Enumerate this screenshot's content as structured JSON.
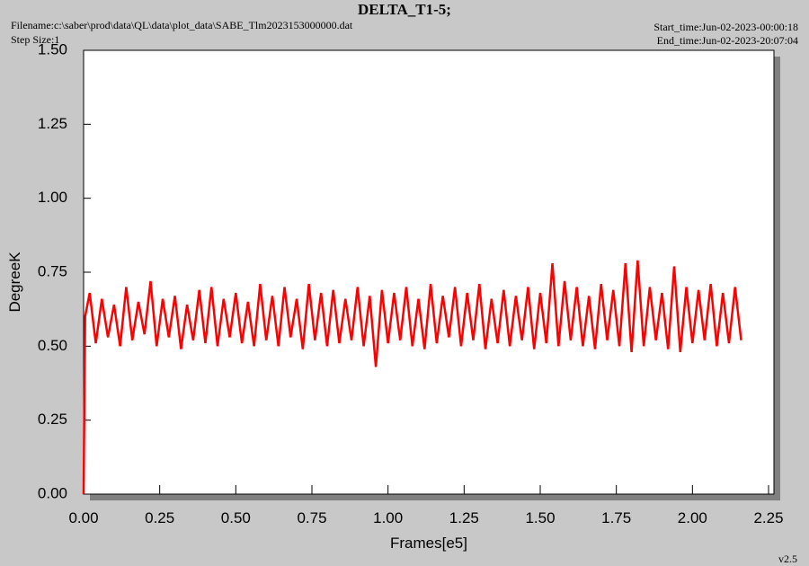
{
  "chart_data": {
    "type": "line",
    "title": "DELTA_T1-5;",
    "filename": "Filename:c:\\saber\\prod\\data\\QL\\data\\plot_data\\SABE_Tlm2023153000000.dat",
    "step_size": "Step Size:1",
    "start_time": "Start_time:Jun-02-2023-00:00:18",
    "end_time": "End_time:Jun-02-2023-20:07:04",
    "version": "v2.5",
    "x_label": "Frames[e5]",
    "y_label": "DegreeK",
    "xlim": [
      0,
      2.25
    ],
    "ylim": [
      0,
      1.5
    ],
    "xticks": [
      {
        "value": 0,
        "label": "0.00"
      },
      0.25,
      {
        "value": 0.5,
        "label": "0.50"
      },
      0.75,
      {
        "value": 1,
        "label": "1.00"
      },
      1.25,
      {
        "value": 1.5,
        "label": "1.50"
      },
      1.75,
      {
        "value": 2,
        "label": "2.00"
      },
      2.25
    ],
    "yticks": [
      {
        "value": 0,
        "label": "0.00"
      },
      0.25,
      {
        "value": 0.5,
        "label": "0.50"
      },
      0.75,
      {
        "value": 1,
        "label": "1.00"
      },
      1.25,
      {
        "value": 1.5,
        "label": "1.50"
      }
    ],
    "x": [
      0,
      0.005,
      0.02,
      0.04,
      0.06,
      0.08,
      0.1,
      0.12,
      0.14,
      0.16,
      0.18,
      0.2,
      0.22,
      0.24,
      0.26,
      0.28,
      0.3,
      0.32,
      0.34,
      0.36,
      0.38,
      0.4,
      0.42,
      0.44,
      0.46,
      0.48,
      0.5,
      0.52,
      0.54,
      0.56,
      0.58,
      0.6,
      0.62,
      0.64,
      0.66,
      0.68,
      0.7,
      0.72,
      0.74,
      0.76,
      0.78,
      0.8,
      0.82,
      0.84,
      0.86,
      0.88,
      0.9,
      0.92,
      0.94,
      0.96,
      0.98,
      1,
      1.02,
      1.04,
      1.06,
      1.08,
      1.1,
      1.12,
      1.14,
      1.16,
      1.18,
      1.2,
      1.22,
      1.24,
      1.26,
      1.28,
      1.3,
      1.32,
      1.34,
      1.36,
      1.38,
      1.4,
      1.42,
      1.44,
      1.46,
      1.48,
      1.5,
      1.52,
      1.54,
      1.56,
      1.58,
      1.6,
      1.62,
      1.64,
      1.66,
      1.68,
      1.7,
      1.72,
      1.74,
      1.76,
      1.78,
      1.8,
      1.82,
      1.84,
      1.86,
      1.88,
      1.9,
      1.92,
      1.94,
      1.96,
      1.98,
      2,
      2.02,
      2.04,
      2.06,
      2.08,
      2.1,
      2.12,
      2.14,
      2.16
    ],
    "series": [
      {
        "name": "DELTA_T1-5",
        "color": "#ff0000",
        "values": [
          0,
          0.6,
          0.68,
          0.51,
          0.66,
          0.53,
          0.64,
          0.5,
          0.7,
          0.52,
          0.65,
          0.54,
          0.72,
          0.5,
          0.66,
          0.53,
          0.67,
          0.49,
          0.64,
          0.52,
          0.69,
          0.51,
          0.7,
          0.5,
          0.66,
          0.53,
          0.68,
          0.51,
          0.65,
          0.5,
          0.71,
          0.52,
          0.67,
          0.5,
          0.7,
          0.53,
          0.66,
          0.49,
          0.71,
          0.52,
          0.68,
          0.5,
          0.69,
          0.51,
          0.66,
          0.52,
          0.7,
          0.5,
          0.67,
          0.43,
          0.69,
          0.51,
          0.68,
          0.52,
          0.7,
          0.5,
          0.66,
          0.49,
          0.71,
          0.51,
          0.67,
          0.53,
          0.7,
          0.5,
          0.68,
          0.52,
          0.71,
          0.49,
          0.66,
          0.51,
          0.69,
          0.5,
          0.67,
          0.52,
          0.7,
          0.49,
          0.68,
          0.51,
          0.78,
          0.5,
          0.72,
          0.52,
          0.7,
          0.5,
          0.67,
          0.49,
          0.71,
          0.52,
          0.69,
          0.5,
          0.78,
          0.48,
          0.79,
          0.5,
          0.7,
          0.52,
          0.68,
          0.49,
          0.77,
          0.48,
          0.7,
          0.51,
          0.69,
          0.52,
          0.71,
          0.5,
          0.68,
          0.51,
          0.7,
          0.52
        ]
      }
    ]
  }
}
